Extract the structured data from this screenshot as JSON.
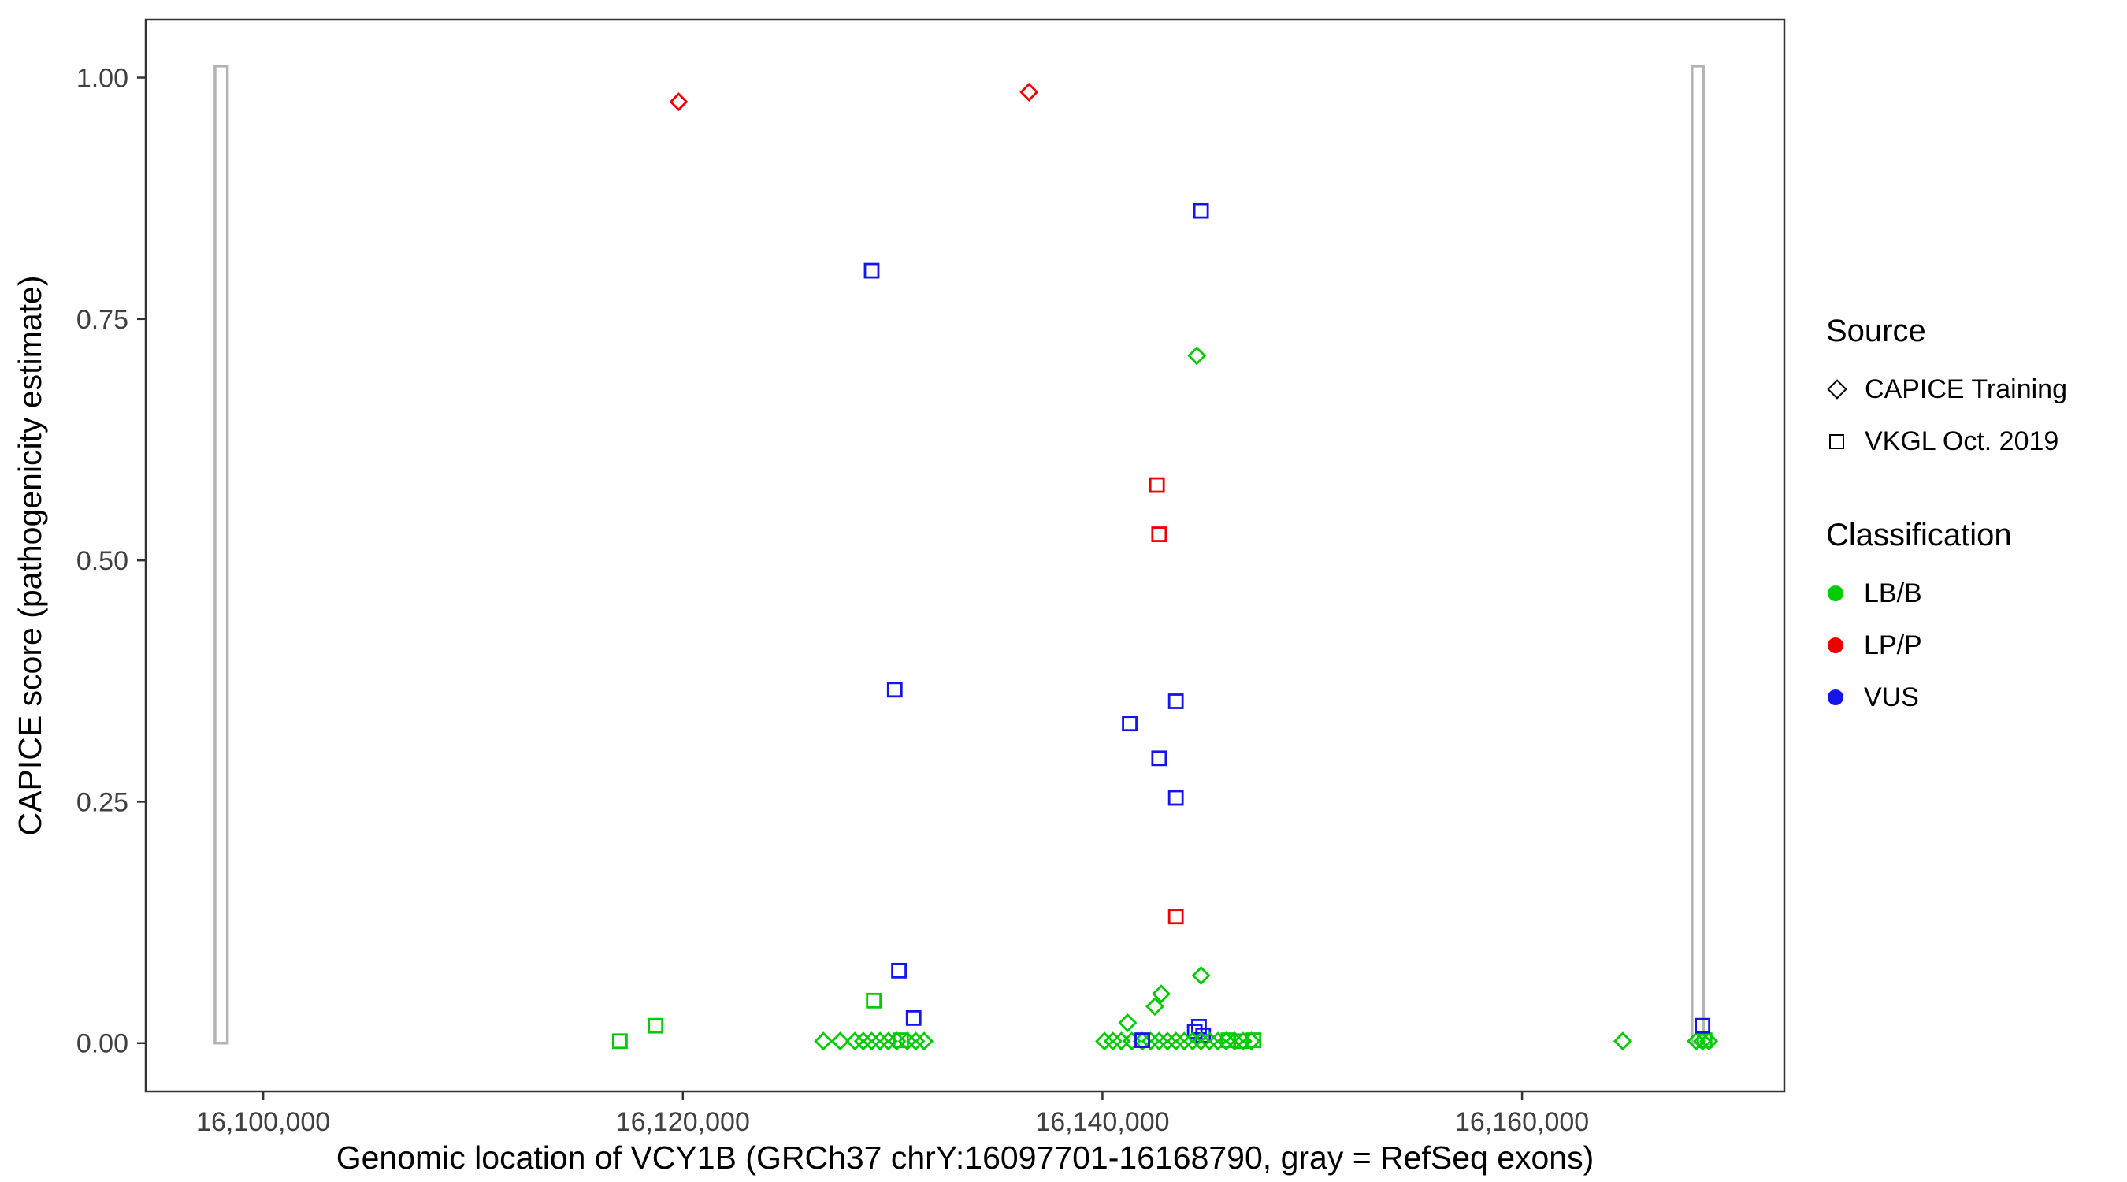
{
  "legend": {
    "source": {
      "title": "Source",
      "items": [
        {
          "label": "CAPICE Training",
          "shape": "diamond"
        },
        {
          "label": "VKGL Oct. 2019",
          "shape": "square"
        }
      ]
    },
    "classification": {
      "title": "Classification",
      "items": [
        {
          "label": "LB/B",
          "color": "#00CC00"
        },
        {
          "label": "LP/P",
          "color": "#EE0000"
        },
        {
          "label": "VUS",
          "color": "#1414EB"
        }
      ]
    }
  },
  "chart_data": {
    "type": "scatter",
    "title": "",
    "xlabel": "Genomic location of VCY1B (GRCh37 chrY:16097701-16168790, gray = RefSeq exons)",
    "ylabel": "CAPICE score (pathogenicity estimate)",
    "x_domain": [
      16094400,
      16172500
    ],
    "y_domain": [
      -0.05,
      1.06
    ],
    "x_ticks": [
      {
        "value": 16100000,
        "label": "16,100,000"
      },
      {
        "value": 16120000,
        "label": "16,120,000"
      },
      {
        "value": 16140000,
        "label": "16,140,000"
      },
      {
        "value": 16160000,
        "label": "16,160,000"
      }
    ],
    "y_ticks": [
      {
        "value": 0.0,
        "label": "0.00"
      },
      {
        "value": 0.25,
        "label": "0.25"
      },
      {
        "value": 0.5,
        "label": "0.50"
      },
      {
        "value": 0.75,
        "label": "0.75"
      },
      {
        "value": 1.0,
        "label": "1.00"
      }
    ],
    "exon_color": "#B3B3B3",
    "exons": [
      {
        "start": 16097701,
        "end": 16098290
      },
      {
        "start": 16168100,
        "end": 16168640
      }
    ],
    "shape_by_source": {
      "CAPICE Training": "diamond",
      "VKGL Oct. 2019": "square"
    },
    "class_colors": {
      "LB/B": "#00CC00",
      "LP/P": "#EE0000",
      "VUS": "#1414EB"
    },
    "points": [
      {
        "x": 16119800,
        "y": 0.975,
        "source": "CAPICE Training",
        "cls": "LP/P"
      },
      {
        "x": 16136500,
        "y": 0.985,
        "source": "CAPICE Training",
        "cls": "LP/P"
      },
      {
        "x": 16144700,
        "y": 0.862,
        "source": "VKGL Oct. 2019",
        "cls": "VUS"
      },
      {
        "x": 16129000,
        "y": 0.8,
        "source": "VKGL Oct. 2019",
        "cls": "VUS"
      },
      {
        "x": 16144500,
        "y": 0.712,
        "source": "CAPICE Training",
        "cls": "LB/B"
      },
      {
        "x": 16142600,
        "y": 0.578,
        "source": "VKGL Oct. 2019",
        "cls": "LP/P"
      },
      {
        "x": 16142700,
        "y": 0.527,
        "source": "VKGL Oct. 2019",
        "cls": "LP/P"
      },
      {
        "x": 16130100,
        "y": 0.366,
        "source": "VKGL Oct. 2019",
        "cls": "VUS"
      },
      {
        "x": 16143500,
        "y": 0.354,
        "source": "VKGL Oct. 2019",
        "cls": "VUS"
      },
      {
        "x": 16141300,
        "y": 0.331,
        "source": "VKGL Oct. 2019",
        "cls": "VUS"
      },
      {
        "x": 16142700,
        "y": 0.295,
        "source": "VKGL Oct. 2019",
        "cls": "VUS"
      },
      {
        "x": 16143500,
        "y": 0.254,
        "source": "VKGL Oct. 2019",
        "cls": "VUS"
      },
      {
        "x": 16143500,
        "y": 0.131,
        "source": "VKGL Oct. 2019",
        "cls": "LP/P"
      },
      {
        "x": 16130300,
        "y": 0.075,
        "source": "VKGL Oct. 2019",
        "cls": "VUS"
      },
      {
        "x": 16144700,
        "y": 0.07,
        "source": "CAPICE Training",
        "cls": "LB/B"
      },
      {
        "x": 16142800,
        "y": 0.051,
        "source": "CAPICE Training",
        "cls": "LB/B"
      },
      {
        "x": 16129100,
        "y": 0.044,
        "source": "VKGL Oct. 2019",
        "cls": "LB/B"
      },
      {
        "x": 16142500,
        "y": 0.038,
        "source": "CAPICE Training",
        "cls": "LB/B"
      },
      {
        "x": 16131000,
        "y": 0.026,
        "source": "VKGL Oct. 2019",
        "cls": "VUS"
      },
      {
        "x": 16141200,
        "y": 0.021,
        "source": "CAPICE Training",
        "cls": "LB/B"
      },
      {
        "x": 16118700,
        "y": 0.018,
        "source": "VKGL Oct. 2019",
        "cls": "LB/B"
      },
      {
        "x": 16144600,
        "y": 0.017,
        "source": "VKGL Oct. 2019",
        "cls": "VUS"
      },
      {
        "x": 16144400,
        "y": 0.012,
        "source": "VKGL Oct. 2019",
        "cls": "VUS"
      },
      {
        "x": 16144800,
        "y": 0.008,
        "source": "VKGL Oct. 2019",
        "cls": "VUS"
      },
      {
        "x": 16117000,
        "y": 0.002,
        "source": "VKGL Oct. 2019",
        "cls": "LB/B"
      },
      {
        "x": 16126700,
        "y": 0.002,
        "source": "CAPICE Training",
        "cls": "LB/B"
      },
      {
        "x": 16127500,
        "y": 0.002,
        "source": "CAPICE Training",
        "cls": "LB/B"
      },
      {
        "x": 16128200,
        "y": 0.002,
        "source": "CAPICE Training",
        "cls": "LB/B"
      },
      {
        "x": 16128600,
        "y": 0.002,
        "source": "CAPICE Training",
        "cls": "LB/B"
      },
      {
        "x": 16129000,
        "y": 0.002,
        "source": "CAPICE Training",
        "cls": "LB/B"
      },
      {
        "x": 16129400,
        "y": 0.002,
        "source": "CAPICE Training",
        "cls": "LB/B"
      },
      {
        "x": 16129800,
        "y": 0.002,
        "source": "CAPICE Training",
        "cls": "LB/B"
      },
      {
        "x": 16130200,
        "y": 0.002,
        "source": "CAPICE Training",
        "cls": "LB/B"
      },
      {
        "x": 16130700,
        "y": 0.002,
        "source": "CAPICE Training",
        "cls": "LB/B"
      },
      {
        "x": 16131100,
        "y": 0.002,
        "source": "CAPICE Training",
        "cls": "LB/B"
      },
      {
        "x": 16131500,
        "y": 0.002,
        "source": "CAPICE Training",
        "cls": "LB/B"
      },
      {
        "x": 16130400,
        "y": 0.003,
        "source": "VKGL Oct. 2019",
        "cls": "LB/B"
      },
      {
        "x": 16140100,
        "y": 0.002,
        "source": "CAPICE Training",
        "cls": "LB/B"
      },
      {
        "x": 16140500,
        "y": 0.002,
        "source": "CAPICE Training",
        "cls": "LB/B"
      },
      {
        "x": 16140900,
        "y": 0.002,
        "source": "CAPICE Training",
        "cls": "LB/B"
      },
      {
        "x": 16141400,
        "y": 0.002,
        "source": "CAPICE Training",
        "cls": "LB/B"
      },
      {
        "x": 16141900,
        "y": 0.002,
        "source": "CAPICE Training",
        "cls": "LB/B"
      },
      {
        "x": 16142300,
        "y": 0.002,
        "source": "CAPICE Training",
        "cls": "LB/B"
      },
      {
        "x": 16142700,
        "y": 0.002,
        "source": "CAPICE Training",
        "cls": "LB/B"
      },
      {
        "x": 16143100,
        "y": 0.002,
        "source": "CAPICE Training",
        "cls": "LB/B"
      },
      {
        "x": 16143500,
        "y": 0.002,
        "source": "CAPICE Training",
        "cls": "LB/B"
      },
      {
        "x": 16143900,
        "y": 0.002,
        "source": "CAPICE Training",
        "cls": "LB/B"
      },
      {
        "x": 16144300,
        "y": 0.002,
        "source": "CAPICE Training",
        "cls": "LB/B"
      },
      {
        "x": 16144700,
        "y": 0.002,
        "source": "CAPICE Training",
        "cls": "LB/B"
      },
      {
        "x": 16145100,
        "y": 0.002,
        "source": "CAPICE Training",
        "cls": "LB/B"
      },
      {
        "x": 16145500,
        "y": 0.002,
        "source": "CAPICE Training",
        "cls": "LB/B"
      },
      {
        "x": 16145900,
        "y": 0.002,
        "source": "CAPICE Training",
        "cls": "LB/B"
      },
      {
        "x": 16146300,
        "y": 0.002,
        "source": "CAPICE Training",
        "cls": "LB/B"
      },
      {
        "x": 16146700,
        "y": 0.002,
        "source": "CAPICE Training",
        "cls": "LB/B"
      },
      {
        "x": 16147100,
        "y": 0.002,
        "source": "CAPICE Training",
        "cls": "LB/B"
      },
      {
        "x": 16146000,
        "y": 0.003,
        "source": "VKGL Oct. 2019",
        "cls": "LB/B"
      },
      {
        "x": 16146600,
        "y": 0.002,
        "source": "VKGL Oct. 2019",
        "cls": "LB/B"
      },
      {
        "x": 16147200,
        "y": 0.003,
        "source": "VKGL Oct. 2019",
        "cls": "LB/B"
      },
      {
        "x": 16141900,
        "y": 0.003,
        "source": "VKGL Oct. 2019",
        "cls": "VUS"
      },
      {
        "x": 16164800,
        "y": 0.002,
        "source": "CAPICE Training",
        "cls": "LB/B"
      },
      {
        "x": 16168300,
        "y": 0.002,
        "source": "CAPICE Training",
        "cls": "LB/B"
      },
      {
        "x": 16168600,
        "y": 0.002,
        "source": "CAPICE Training",
        "cls": "LB/B"
      },
      {
        "x": 16168900,
        "y": 0.002,
        "source": "CAPICE Training",
        "cls": "LB/B"
      },
      {
        "x": 16168700,
        "y": 0.003,
        "source": "VKGL Oct. 2019",
        "cls": "LB/B"
      },
      {
        "x": 16168600,
        "y": 0.018,
        "source": "VKGL Oct. 2019",
        "cls": "VUS"
      }
    ]
  }
}
